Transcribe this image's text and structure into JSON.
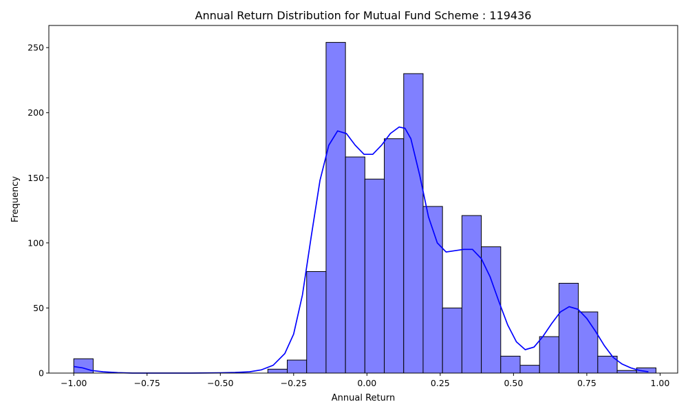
{
  "chart_data": {
    "type": "bar",
    "subtype": "histogram",
    "title": "Annual Return Distribution for Mutual Fund Scheme : 119436",
    "xlabel": "Annual Return",
    "ylabel": "Frequency",
    "xlim": [
      -1.085,
      1.06
    ],
    "ylim": [
      0,
      267
    ],
    "x_ticks": [
      -1.0,
      -0.75,
      -0.5,
      -0.25,
      0.0,
      0.25,
      0.5,
      0.75,
      1.0
    ],
    "x_tick_labels": [
      "−1.00",
      "−0.75",
      "−0.50",
      "−0.25",
      "0.00",
      "0.25",
      "0.50",
      "0.75",
      "1.00"
    ],
    "y_ticks": [
      0,
      50,
      100,
      150,
      200,
      250
    ],
    "y_tick_labels": [
      "0",
      "50",
      "100",
      "150",
      "200",
      "250"
    ],
    "bin_start": -1.0,
    "bin_width": 0.0662,
    "bin_counts": [
      11,
      0,
      0,
      0,
      0,
      0,
      0,
      0,
      0,
      0,
      3,
      10,
      78,
      254,
      166,
      149,
      180,
      230,
      128,
      50,
      121,
      97,
      13,
      6,
      28,
      69,
      47,
      13,
      2,
      4
    ],
    "bar_color": "#8080ff",
    "bar_edge_color": "#000000",
    "kde": {
      "color": "#0000ff",
      "x": [
        -1.0,
        -0.97,
        -0.94,
        -0.9,
        -0.85,
        -0.8,
        -0.7,
        -0.6,
        -0.5,
        -0.45,
        -0.4,
        -0.36,
        -0.32,
        -0.28,
        -0.25,
        -0.22,
        -0.19,
        -0.16,
        -0.13,
        -0.1,
        -0.07,
        -0.04,
        -0.01,
        0.02,
        0.05,
        0.08,
        0.11,
        0.13,
        0.15,
        0.18,
        0.21,
        0.24,
        0.27,
        0.3,
        0.33,
        0.36,
        0.39,
        0.42,
        0.45,
        0.48,
        0.51,
        0.54,
        0.57,
        0.6,
        0.63,
        0.66,
        0.69,
        0.72,
        0.75,
        0.78,
        0.81,
        0.84,
        0.87,
        0.9,
        0.93,
        0.96
      ],
      "y": [
        5,
        4,
        2,
        1,
        0.3,
        0,
        0,
        0,
        0.2,
        0.5,
        1,
        2.5,
        6,
        15,
        30,
        60,
        105,
        148,
        175,
        186,
        184,
        175,
        168,
        168,
        175,
        184,
        189,
        188,
        180,
        152,
        120,
        100,
        93,
        94,
        95,
        95,
        88,
        74,
        55,
        37,
        24,
        18,
        20,
        28,
        38,
        47,
        51,
        49,
        42,
        32,
        21,
        12,
        7,
        4,
        2,
        1
      ]
    }
  }
}
